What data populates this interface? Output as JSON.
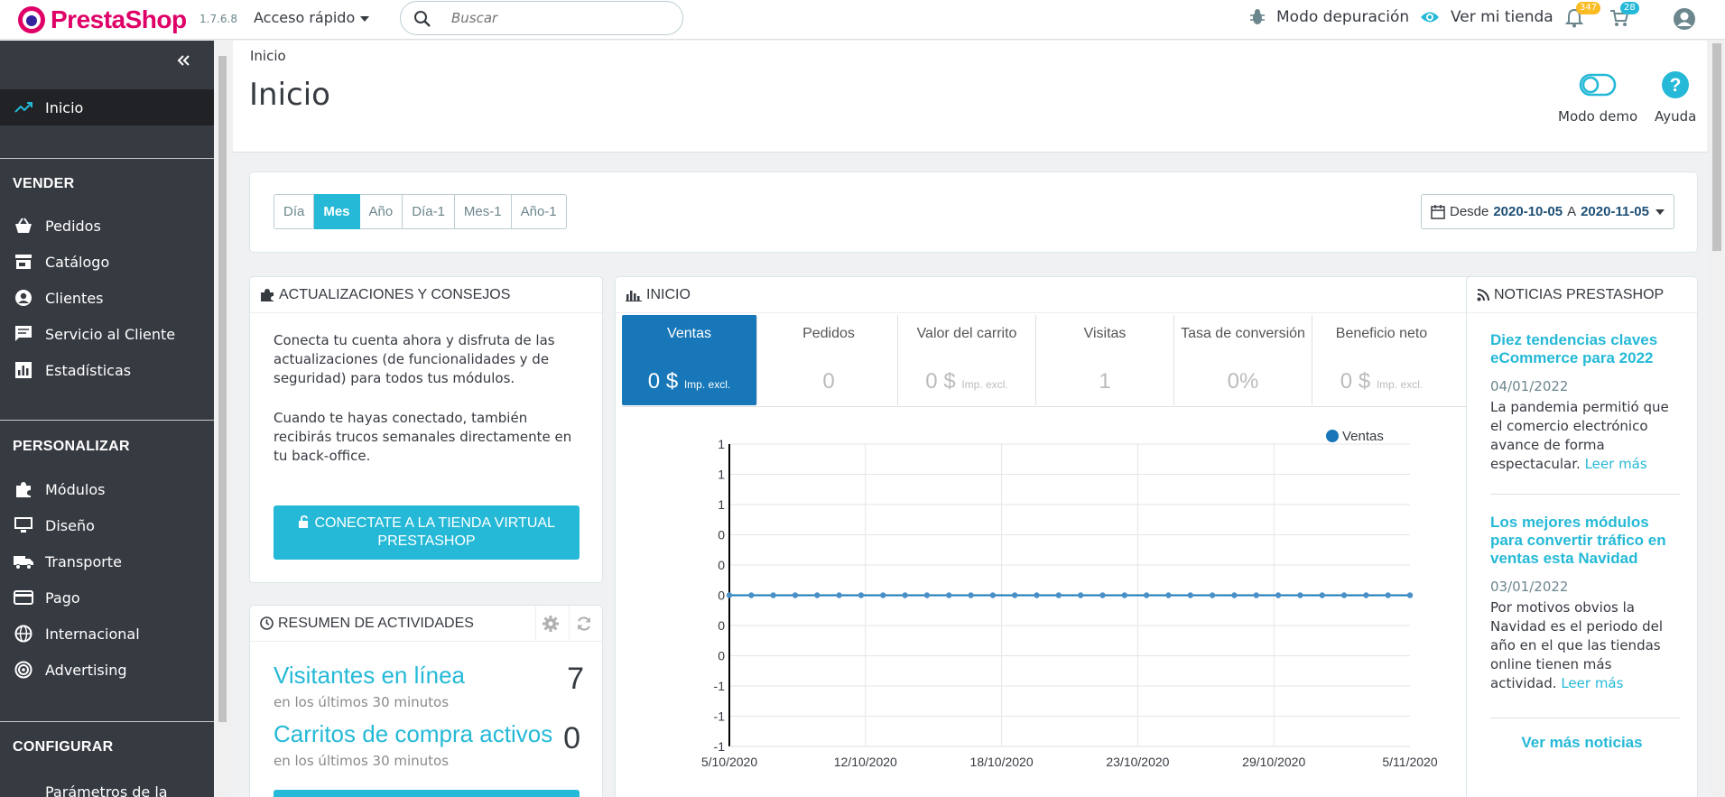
{
  "header": {
    "logo_text": "PrestaShop",
    "version": "1.7.6.8",
    "quick_access": "Acceso rápido",
    "search_placeholder": "Buscar",
    "debug_mode": "Modo depuración",
    "view_store": "Ver mi tienda",
    "notifications_count": "347",
    "orders_count": "28"
  },
  "sidebar": {
    "home": "Inicio",
    "sections": [
      {
        "title": "VENDER",
        "items": [
          "Pedidos",
          "Catálogo",
          "Clientes",
          "Servicio al Cliente",
          "Estadísticas"
        ]
      },
      {
        "title": "PERSONALIZAR",
        "items": [
          "Módulos",
          "Diseño",
          "Transporte",
          "Pago",
          "Internacional",
          "Advertising"
        ]
      },
      {
        "title": "CONFIGURAR",
        "items": [
          "Parámetros de la"
        ]
      }
    ]
  },
  "page": {
    "breadcrumb": "Inicio",
    "title": "Inicio",
    "toolbar": {
      "demo": "Modo demo",
      "help": "Ayuda"
    }
  },
  "filters": {
    "periods": [
      "Día",
      "Mes",
      "Año",
      "Día-1",
      "Mes-1",
      "Año-1"
    ],
    "active": "Mes",
    "range_prefix": "Desde",
    "from": "2020-10-05",
    "sep": "A",
    "to": "2020-11-05"
  },
  "updates": {
    "title": "ACTUALIZACIONES Y CONSEJOS",
    "p1": "Conecta tu cuenta ahora y disfruta de las actualizaciones (de funcionalidades y de seguridad) para todos tus módulos.",
    "p2": "Cuando te hayas conectado, también recibirás trucos semanales directamente en tu back-office.",
    "button": "CONECTATE A LA TIENDA VIRTUAL PRESTASHOP"
  },
  "activity": {
    "title": "RESUMEN DE ACTIVIDADES",
    "online_label": "Visitantes en línea",
    "online_value": "7",
    "online_sub": "en los últimos 30 minutos",
    "carts_label": "Carritos de compra activos",
    "carts_value": "0",
    "carts_sub": "en los últimos 30 minutos"
  },
  "dashboard": {
    "title": "INICIO",
    "kpis": [
      {
        "label": "Ventas",
        "value": "0 $",
        "suffix": "Imp. excl."
      },
      {
        "label": "Pedidos",
        "value": "0",
        "suffix": ""
      },
      {
        "label": "Valor del carrito",
        "value": "0 $",
        "suffix": "Imp. excl."
      },
      {
        "label": "Visitas",
        "value": "1",
        "suffix": ""
      },
      {
        "label": "Tasa de conversión",
        "value": "0%",
        "suffix": ""
      },
      {
        "label": "Beneficio neto",
        "value": "0 $",
        "suffix": "Imp. excl."
      }
    ]
  },
  "chart_data": {
    "type": "line",
    "series": [
      {
        "name": "Ventas",
        "color": "#1777b8",
        "values": [
          0,
          0,
          0,
          0,
          0,
          0,
          0,
          0,
          0,
          0,
          0,
          0,
          0,
          0,
          0,
          0,
          0,
          0,
          0,
          0,
          0,
          0,
          0,
          0,
          0,
          0,
          0,
          0,
          0,
          0,
          0,
          0
        ]
      }
    ],
    "y_ticks": [
      "1",
      "1",
      "1",
      "0",
      "0",
      "0",
      "0",
      "0",
      "-1",
      "-1",
      "-1"
    ],
    "x_ticks": [
      "5/10/2020",
      "12/10/2020",
      "18/10/2020",
      "23/10/2020",
      "29/10/2020",
      "5/11/2020"
    ],
    "legend": "top-right"
  },
  "news": {
    "title": "NOTICIAS PRESTASHOP",
    "items": [
      {
        "title": "Diez tendencias claves eCommerce para 2022",
        "date": "04/01/2022",
        "body": "La pandemia permitió que el comercio electrónico avance de forma espectacular.",
        "more": "Leer más"
      },
      {
        "title": "Los mejores módulos para convertir tráfico en ventas esta Navidad",
        "date": "03/01/2022",
        "body": "Por motivos obvios la Navidad es el periodo del año en el que las tiendas online tienen más actividad.",
        "more": "Leer más"
      }
    ],
    "see_more": "Ver más noticias"
  }
}
